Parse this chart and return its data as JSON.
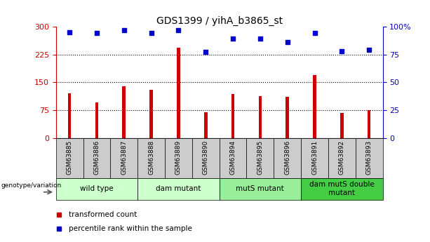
{
  "title": "GDS1399 / yihA_b3865_st",
  "samples": [
    "GSM63885",
    "GSM63886",
    "GSM63887",
    "GSM63888",
    "GSM63889",
    "GSM63890",
    "GSM63894",
    "GSM63895",
    "GSM63896",
    "GSM63891",
    "GSM63892",
    "GSM63893"
  ],
  "bar_values": [
    120,
    95,
    140,
    130,
    243,
    70,
    118,
    112,
    110,
    170,
    68,
    75
  ],
  "percentile_values": [
    95,
    94,
    97,
    94,
    97,
    77,
    89,
    89,
    86,
    94,
    78,
    79
  ],
  "bar_color": "#cc0000",
  "dot_color": "#0000cc",
  "ylim_left": [
    0,
    300
  ],
  "ylim_right": [
    0,
    100
  ],
  "yticks_left": [
    0,
    75,
    150,
    225,
    300
  ],
  "yticks_right": [
    0,
    25,
    50,
    75,
    100
  ],
  "ytick_labels_right": [
    "0",
    "25",
    "50",
    "75",
    "100%"
  ],
  "groups": [
    {
      "label": "wild type",
      "start": 0,
      "end": 3
    },
    {
      "label": "dam mutant",
      "start": 3,
      "end": 6
    },
    {
      "label": "mutS mutant",
      "start": 6,
      "end": 9
    },
    {
      "label": "dam mutS double\nmutant",
      "start": 9,
      "end": 12
    }
  ],
  "group_box_colors": [
    "#ccffcc",
    "#ccffcc",
    "#99ee99",
    "#44cc44"
  ],
  "tick_label_bg": "#cccccc",
  "legend_bar_label": "transformed count",
  "legend_dot_label": "percentile rank within the sample",
  "genotype_label": "genotype/variation"
}
